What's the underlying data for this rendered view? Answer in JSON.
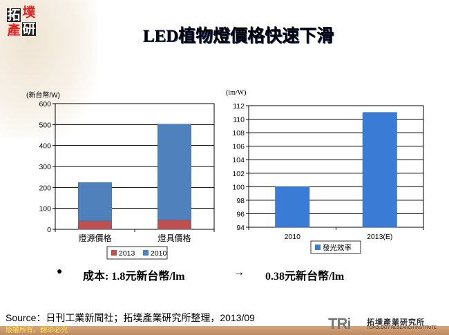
{
  "header": {
    "logo_chars": [
      "拓",
      "墣",
      "產",
      "研"
    ],
    "title": "LED植物燈價格快速下滑"
  },
  "chart_data": [
    {
      "type": "bar",
      "stacked": true,
      "ylabel": "(新台幣/W)",
      "ylim": [
        0,
        600
      ],
      "yticks": [
        0,
        100,
        200,
        300,
        400,
        500,
        600
      ],
      "categories": [
        "燈源價格",
        "燈具價格"
      ],
      "series": [
        {
          "name": "2013",
          "values": [
            40,
            45
          ],
          "color": "#c0504d"
        },
        {
          "name": "2010",
          "values": [
            183,
            457
          ],
          "color": "#4f81bd"
        }
      ],
      "grid": true,
      "legend": "bottom"
    },
    {
      "type": "bar",
      "ylabel": "(lm/W)",
      "ylim": [
        94,
        112
      ],
      "yticks": [
        94,
        96,
        98,
        100,
        102,
        104,
        106,
        108,
        110,
        112
      ],
      "categories": [
        "2010",
        "2013(E)"
      ],
      "series": [
        {
          "name": "發光效率",
          "values": [
            100,
            111
          ],
          "color": "#3a7bd5"
        }
      ],
      "grid": true,
      "legend": "bottom"
    }
  ],
  "bullet": {
    "left": "成本: 1.8元新台幣/lm",
    "arrow": "→",
    "right": "0.38元新台幣/lm"
  },
  "source": "Source：日刊工業新聞社；拓墣產業研究所整理，2013/09",
  "footer": "版權所有。翻印必究",
  "tri_logo": {
    "mark": "TRi",
    "name": "拓墣產業研究所",
    "sub": "TOPOLOGY RESEARCH INSTITUTE"
  }
}
